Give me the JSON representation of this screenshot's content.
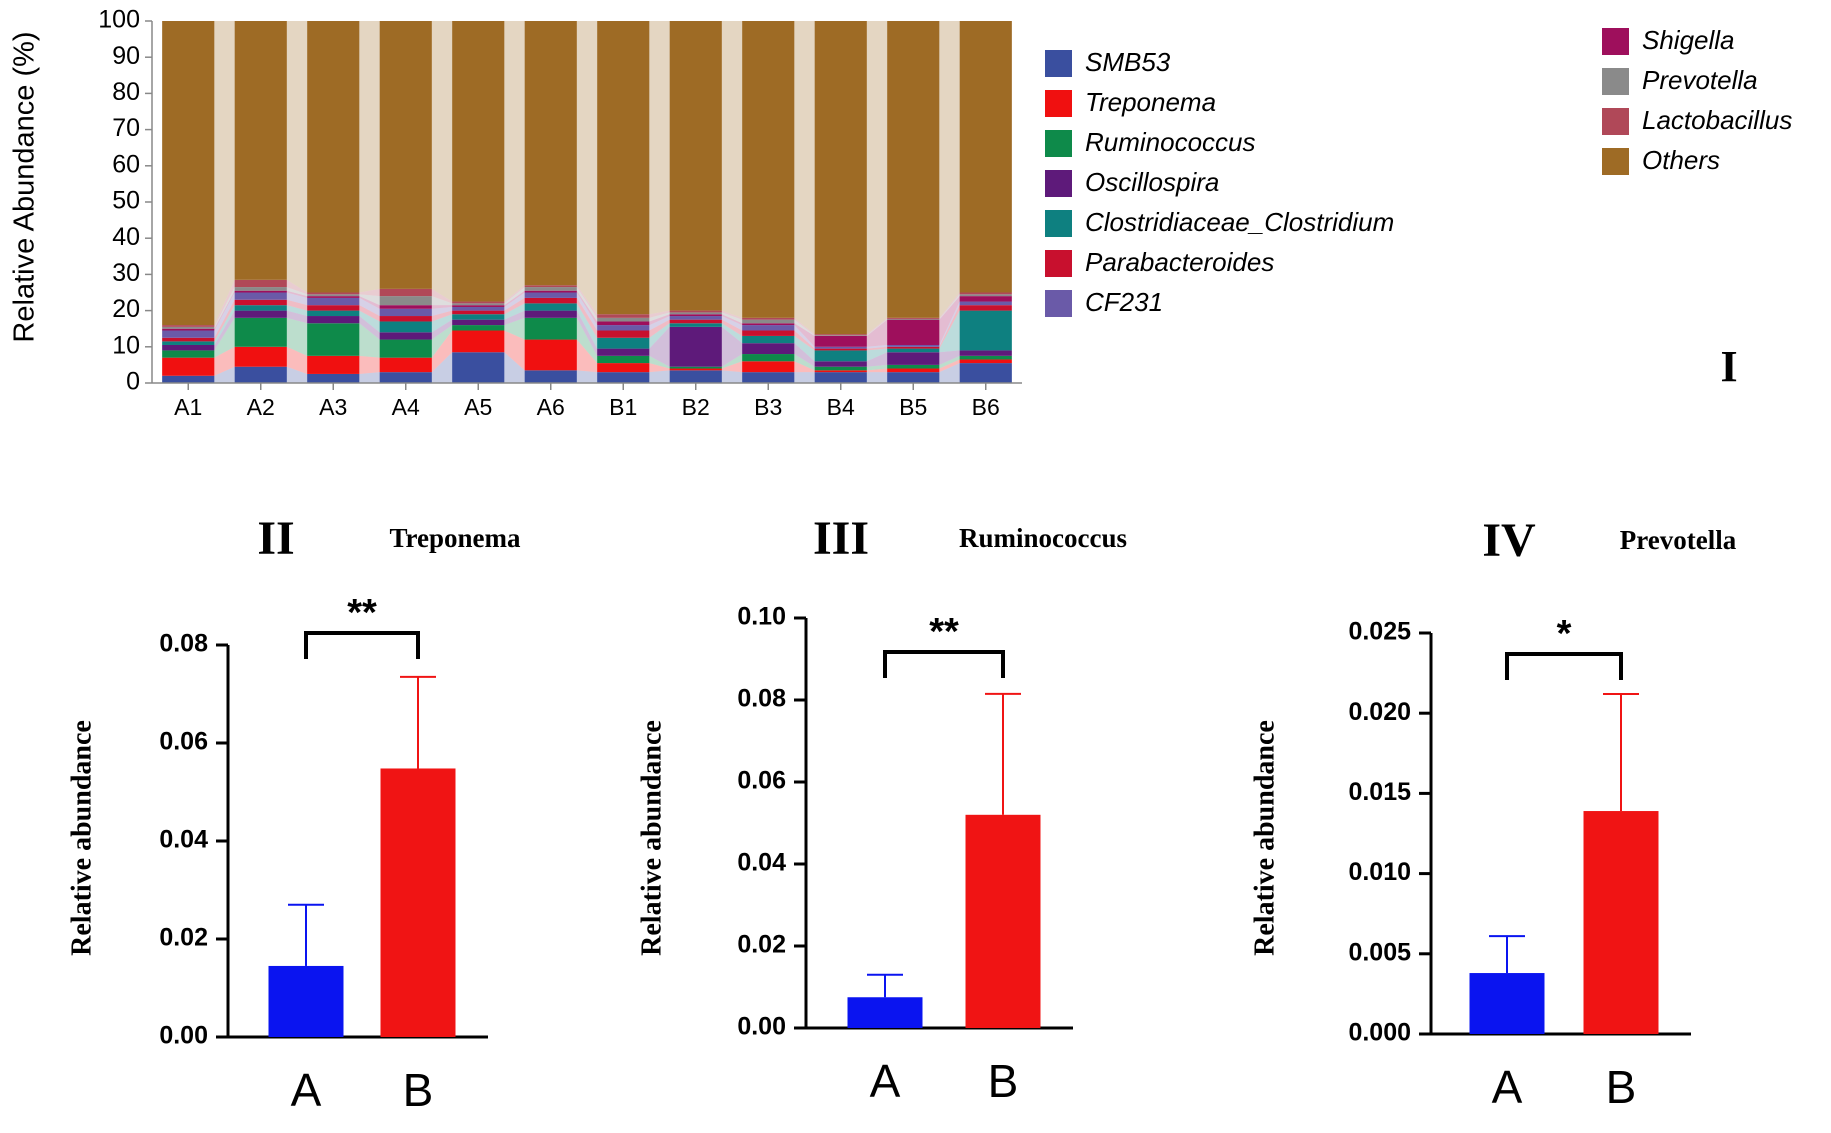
{
  "chart_data": [
    {
      "type": "stacked-bar",
      "panel": "I",
      "ylabel": "Relative Abundance (%)",
      "categories": [
        "A1",
        "A2",
        "A3",
        "A4",
        "A5",
        "A6",
        "B1",
        "B2",
        "B3",
        "B4",
        "B5",
        "B6"
      ],
      "ylim": [
        0,
        100
      ],
      "yticks": [
        0,
        10,
        20,
        30,
        40,
        50,
        60,
        70,
        80,
        90,
        100
      ],
      "series": [
        {
          "name": "SMB53",
          "color": "#3a4f9f",
          "values": [
            2,
            4.5,
            2.5,
            3,
            8.5,
            3.5,
            3,
            3.5,
            3,
            3,
            3,
            5.5
          ]
        },
        {
          "name": "Treponema",
          "color": "#f01010",
          "values": [
            5,
            5.5,
            5,
            4,
            6,
            8.5,
            2.5,
            0.5,
            3,
            0.5,
            1,
            1
          ]
        },
        {
          "name": "Ruminococcus",
          "color": "#0e8a4a",
          "values": [
            2,
            8,
            9,
            5,
            1.5,
            6,
            2,
            0.5,
            2,
            1,
            1,
            1
          ]
        },
        {
          "name": "Oscillospira",
          "color": "#5e1a7a",
          "values": [
            1.5,
            2,
            2,
            2,
            1.5,
            2,
            2,
            11,
            3,
            1.5,
            3.5,
            1.5
          ]
        },
        {
          "name": "Clostridiaceae_Clostridium",
          "color": "#0e8080",
          "values": [
            1,
            1.5,
            1.5,
            3,
            1.5,
            2,
            3,
            1,
            2,
            3,
            1,
            11
          ]
        },
        {
          "name": "Parabacteroides",
          "color": "#c8102e",
          "values": [
            1,
            1.5,
            1.5,
            1.5,
            1,
            1.5,
            2,
            1,
            1.5,
            0.5,
            0.5,
            1.5
          ]
        },
        {
          "name": "CF231",
          "color": "#6a5aa8",
          "values": [
            2,
            2,
            2,
            2,
            1,
            1.5,
            1.5,
            1,
            1.5,
            0.5,
            0.5,
            1
          ]
        },
        {
          "name": "Shigella",
          "color": "#9e0f5c",
          "values": [
            0.5,
            0.5,
            0.5,
            1,
            0.5,
            0.5,
            1,
            0.5,
            0.5,
            3,
            7,
            1.5
          ]
        },
        {
          "name": "Prevotella",
          "color": "#8a8a8a",
          "values": [
            0.5,
            1,
            0.5,
            2.5,
            0.5,
            1,
            1,
            0.5,
            1,
            0.2,
            0.2,
            0.5
          ]
        },
        {
          "name": "Lactobacillus",
          "color": "#b04858",
          "values": [
            0.5,
            2,
            0.5,
            2,
            0.5,
            0.5,
            1,
            0.5,
            0.5,
            0.3,
            0.3,
            0.5
          ]
        },
        {
          "name": "Others",
          "color": "#9e6b25",
          "values": [
            84,
            71.5,
            75,
            74,
            77.5,
            73,
            81,
            80,
            82,
            86.5,
            82,
            75
          ]
        }
      ]
    },
    {
      "type": "bar",
      "panel": "II",
      "title": "Treponema",
      "ylabel": "Relative abundance",
      "categories": [
        "A",
        "B"
      ],
      "values": [
        0.0145,
        0.0548
      ],
      "errors": [
        0.0125,
        0.0187
      ],
      "colors": [
        "#0a14f0",
        "#f01414"
      ],
      "significance": "**",
      "ylim": [
        0,
        0.08
      ],
      "yticks": [
        {
          "value": 0,
          "label": "0.00"
        },
        0.02,
        0.04,
        0.06,
        0.08
      ]
    },
    {
      "type": "bar",
      "panel": "III",
      "title": "Ruminococcus",
      "ylabel": "Relative abundance",
      "categories": [
        "A",
        "B"
      ],
      "values": [
        0.0075,
        0.052
      ],
      "errors": [
        0.0055,
        0.0295
      ],
      "colors": [
        "#0a14f0",
        "#f01414"
      ],
      "significance": "**",
      "ylim": [
        0,
        0.1
      ],
      "yticks": [
        {
          "value": 0,
          "label": "0.00"
        },
        0.02,
        0.04,
        0.06,
        0.08,
        {
          "value": 0.1,
          "label": "0.10"
        }
      ]
    },
    {
      "type": "bar",
      "panel": "IV",
      "title": "Prevotella",
      "ylabel": "Relative abundance",
      "categories": [
        "A",
        "B"
      ],
      "values": [
        0.0038,
        0.0139
      ],
      "errors": [
        0.0023,
        0.0073
      ],
      "colors": [
        "#0a14f0",
        "#f01414"
      ],
      "significance": "*",
      "ylim": [
        0,
        0.025
      ],
      "yticks": [
        {
          "value": 0,
          "label": "0.000"
        },
        0.005,
        {
          "value": 0.01,
          "label": "0.010"
        },
        0.015,
        {
          "value": 0.02,
          "label": "0.020"
        },
        0.025
      ]
    }
  ]
}
